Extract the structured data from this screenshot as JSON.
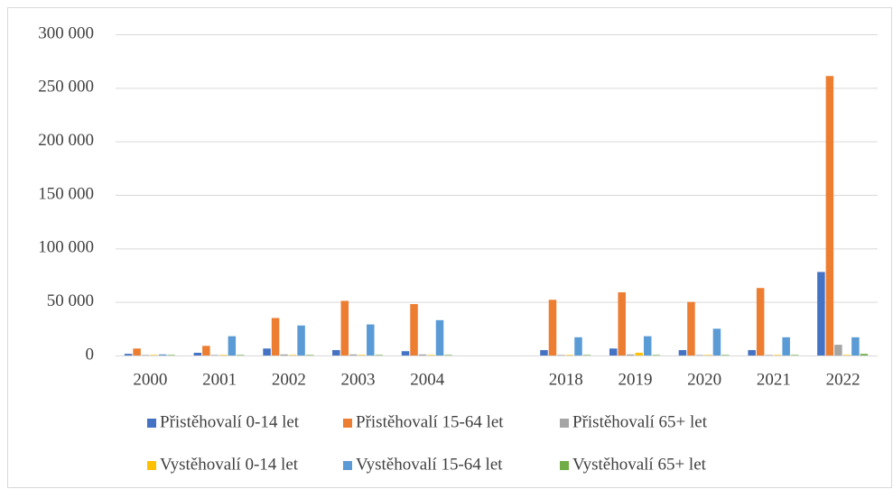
{
  "chart_data": {
    "type": "bar",
    "categories": [
      "2000",
      "2001",
      "2002",
      "2003",
      "2004",
      null,
      "2018",
      "2019",
      "2020",
      "2021",
      "2022"
    ],
    "series": [
      {
        "name": "Přistěhovalí 0-14 let",
        "color": "#4472c4",
        "values": [
          1500,
          2500,
          6500,
          5000,
          4000,
          null,
          5000,
          6500,
          5000,
          5000,
          78000
        ]
      },
      {
        "name": "Přistěhovalí 15-64 let",
        "color": "#ed7d31",
        "values": [
          6500,
          9000,
          35000,
          51000,
          48000,
          null,
          52000,
          59000,
          50000,
          63000,
          261000
        ]
      },
      {
        "name": "Přistěhovalí 65+ let",
        "color": "#a5a5a5",
        "values": [
          500,
          500,
          1000,
          1000,
          1000,
          null,
          500,
          1000,
          500,
          500,
          10000
        ]
      },
      {
        "name": "Vystěhovalí 0-14 let",
        "color": "#ffc000",
        "values": [
          500,
          500,
          500,
          500,
          500,
          null,
          500,
          2500,
          500,
          500,
          500
        ]
      },
      {
        "name": "Vystěhovalí 15-64 let",
        "color": "#5b9bd5",
        "values": [
          1000,
          18000,
          28000,
          29000,
          33000,
          null,
          17000,
          18000,
          25000,
          17000,
          17000
        ]
      },
      {
        "name": "Vystěhovalí 65+ let",
        "color": "#70ad47",
        "values": [
          500,
          500,
          500,
          500,
          500,
          null,
          500,
          500,
          500,
          500,
          1500
        ]
      }
    ],
    "ylim": [
      0,
      300000
    ],
    "yticks": [
      0,
      {
        "value": 50000,
        "label": "50 000"
      },
      {
        "value": 100000,
        "label": "100 000"
      },
      {
        "value": 150000,
        "label": "150 000"
      },
      {
        "value": 200000,
        "label": "200 000"
      },
      {
        "value": 250000,
        "label": "250 000"
      },
      {
        "value": 300000,
        "label": "300 000"
      }
    ],
    "grid": true,
    "legend": "bottom"
  }
}
